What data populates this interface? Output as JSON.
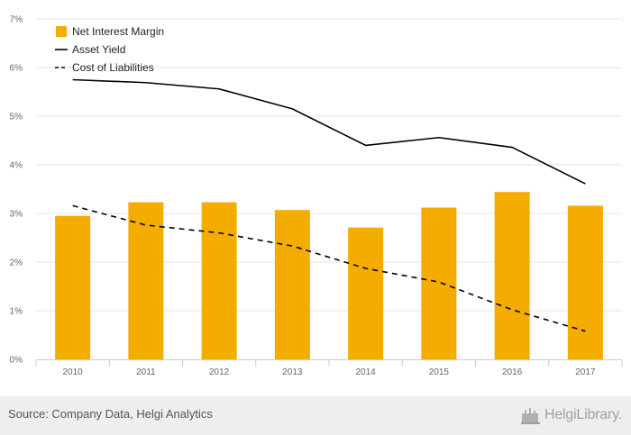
{
  "chart_data": {
    "type": "bar",
    "categories": [
      "2010",
      "2011",
      "2012",
      "2013",
      "2014",
      "2015",
      "2016",
      "2017"
    ],
    "series": [
      {
        "name": "Net Interest Margin",
        "kind": "bar",
        "color": "#f5ac00",
        "values": [
          2.95,
          3.23,
          3.23,
          3.07,
          2.71,
          3.12,
          3.44,
          3.16
        ]
      },
      {
        "name": "Asset Yield",
        "kind": "line",
        "style": "solid",
        "color": "#000000",
        "values": [
          5.75,
          5.69,
          5.56,
          5.15,
          4.4,
          4.56,
          4.36,
          3.61
        ]
      },
      {
        "name": "Cost of Liabilities",
        "kind": "line",
        "style": "dashed",
        "color": "#000000",
        "values": [
          3.16,
          2.76,
          2.6,
          2.33,
          1.87,
          1.59,
          1.02,
          0.58
        ]
      }
    ],
    "y_ticks": [
      "0%",
      "1%",
      "2%",
      "3%",
      "4%",
      "5%",
      "6%",
      "7%"
    ],
    "ylim": [
      0,
      7
    ],
    "grid": true,
    "legend_position": "top-left"
  },
  "footer": {
    "source": "Source: Company Data, Helgi Analytics",
    "logo_text": "HelgiLibrary.",
    "logo_icon": "helgi-logo-icon"
  }
}
